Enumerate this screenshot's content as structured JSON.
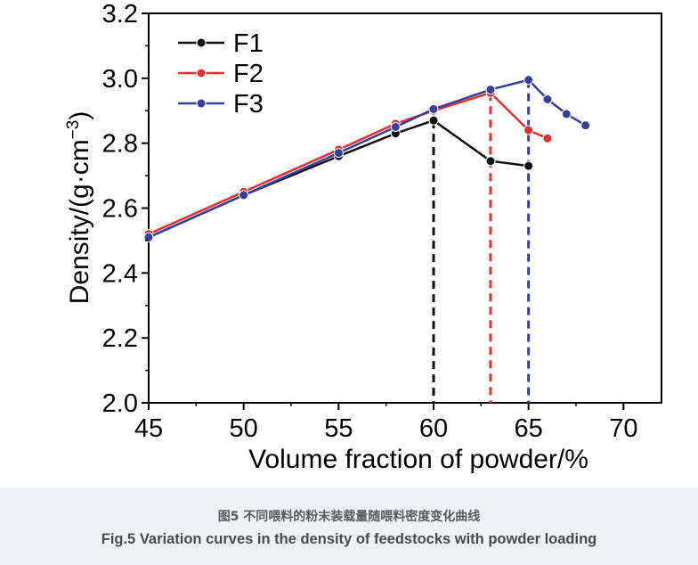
{
  "chart_data": {
    "type": "line",
    "xlabel": "Volume fraction of powder/%",
    "ylabel_parts": {
      "main": "Density/(g·cm",
      "sup": "−3",
      "close": ")"
    },
    "xlim": [
      45,
      72
    ],
    "ylim": [
      2.0,
      3.2
    ],
    "xticks": [
      "45",
      "50",
      "55",
      "60",
      "65",
      "70"
    ],
    "yticks": [
      "2.0",
      "2.2",
      "2.4",
      "2.6",
      "2.8",
      "3.0",
      "3.2"
    ],
    "legend_position": "top-left",
    "grid": false,
    "series": [
      {
        "name": "F1",
        "color": "#111111",
        "x": [
          45,
          50,
          55,
          58,
          60,
          63,
          65
        ],
        "y": [
          2.51,
          2.64,
          2.76,
          2.83,
          2.87,
          2.745,
          2.73
        ]
      },
      {
        "name": "F2",
        "color": "#e03030",
        "x": [
          45,
          50,
          55,
          58,
          60,
          63,
          65,
          66
        ],
        "y": [
          2.52,
          2.65,
          2.78,
          2.86,
          2.9,
          2.955,
          2.84,
          2.815
        ]
      },
      {
        "name": "F3",
        "color": "#3a3f9a",
        "x": [
          45,
          50,
          55,
          58,
          60,
          63,
          65,
          66,
          67,
          68
        ],
        "y": [
          2.51,
          2.64,
          2.77,
          2.85,
          2.905,
          2.965,
          2.995,
          2.935,
          2.89,
          2.855
        ]
      }
    ],
    "reference_lines": [
      {
        "x": 60,
        "y": 2.87,
        "color": "#111111"
      },
      {
        "x": 63,
        "y": 2.955,
        "color": "#e03030"
      },
      {
        "x": 65,
        "y": 2.995,
        "color": "#3a3f9a"
      }
    ]
  },
  "caption": {
    "chinese": "图5 不同喂料的粉末装载量随喂料密度变化曲线",
    "english": "Fig.5 Variation curves in the density of feedstocks with powder loading"
  }
}
